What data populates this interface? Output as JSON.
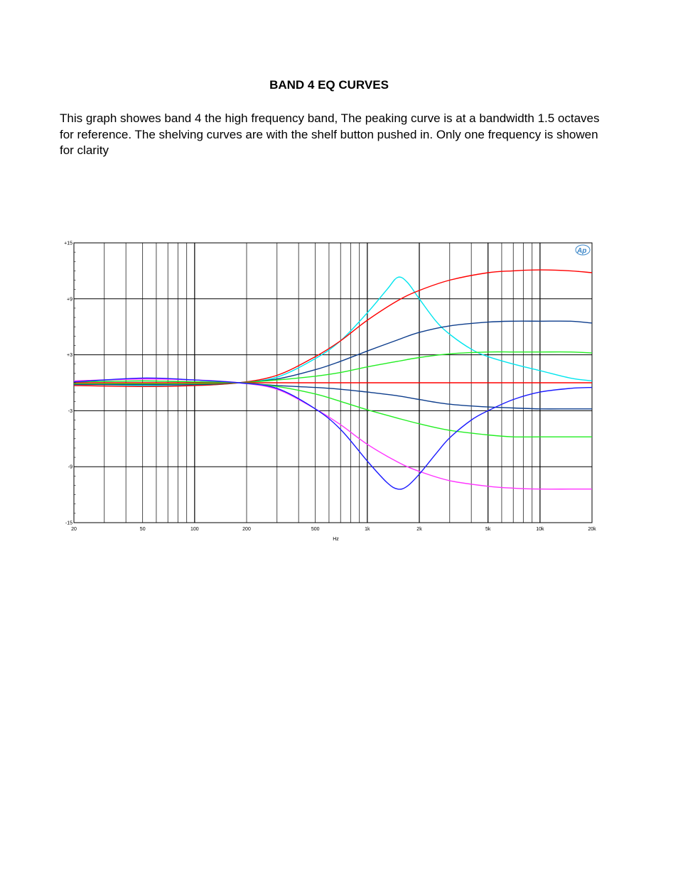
{
  "page": {
    "title": "BAND 4 EQ CURVES",
    "description": "This graph showes band 4 the high frequency band,  The peaking curve is at a bandwidth 1.5 octaves for reference.  The shelving curves are with the shelf button pushed in.  Only one frequency is showen for clarity"
  },
  "chart_data": {
    "type": "line",
    "title": "",
    "xlabel": "Hz",
    "ylabel": "",
    "xscale": "log",
    "xlim": [
      20,
      20000
    ],
    "ylim": [
      -15,
      15
    ],
    "grid": true,
    "logo": "Ap",
    "xticks": [
      {
        "v": 20,
        "label": "20"
      },
      {
        "v": 50,
        "label": "50"
      },
      {
        "v": 100,
        "label": "100"
      },
      {
        "v": 200,
        "label": "200"
      },
      {
        "v": 500,
        "label": "500"
      },
      {
        "v": 1000,
        "label": "1k"
      },
      {
        "v": 2000,
        "label": "2k"
      },
      {
        "v": 5000,
        "label": "5k"
      },
      {
        "v": 10000,
        "label": "10k"
      },
      {
        "v": 20000,
        "label": "20k"
      }
    ],
    "yticks": [
      {
        "v": 15,
        "label": "+15"
      },
      {
        "v": 9,
        "label": "+9"
      },
      {
        "v": 3,
        "label": "+3"
      },
      {
        "v": -3,
        "label": "-3"
      },
      {
        "v": -9,
        "label": "-9"
      },
      {
        "v": -15,
        "label": "-15"
      }
    ],
    "series": [
      {
        "color": "#00e5ee",
        "x": [
          20,
          50,
          100,
          180,
          300,
          500,
          700,
          1000,
          1300,
          1500,
          1700,
          2000,
          2500,
          3000,
          4000,
          5000,
          7000,
          10000,
          15000,
          20000
        ],
        "y": [
          -0.1,
          -0.3,
          -0.3,
          0,
          0.6,
          2.6,
          4.5,
          7.5,
          10,
          11.3,
          10.8,
          9,
          6.6,
          5.2,
          3.6,
          2.8,
          2,
          1.3,
          0.5,
          0.2
        ]
      },
      {
        "color": "#ff0000",
        "x": [
          20,
          50,
          100,
          180,
          300,
          500,
          700,
          1000,
          1500,
          2000,
          3000,
          5000,
          7000,
          10000,
          15000,
          20000
        ],
        "y": [
          -0.3,
          -0.4,
          -0.3,
          0,
          0.8,
          2.8,
          4.5,
          6.7,
          8.8,
          9.9,
          11,
          11.8,
          12,
          12.1,
          12,
          11.8
        ]
      },
      {
        "color": "#0d3d8c",
        "x": [
          20,
          50,
          100,
          180,
          300,
          500,
          700,
          1000,
          1500,
          2000,
          3000,
          5000,
          7000,
          10000,
          15000,
          20000
        ],
        "y": [
          -0.2,
          -0.2,
          -0.2,
          0,
          0.4,
          1.4,
          2.3,
          3.4,
          4.6,
          5.4,
          6.1,
          6.5,
          6.6,
          6.6,
          6.6,
          6.4
        ]
      },
      {
        "color": "#22ee22",
        "x": [
          20,
          50,
          100,
          180,
          300,
          500,
          700,
          1000,
          1500,
          2000,
          3000,
          5000,
          7000,
          10000,
          15000,
          20000
        ],
        "y": [
          -0.1,
          -0.1,
          -0.1,
          0,
          0.3,
          0.7,
          1.1,
          1.7,
          2.3,
          2.7,
          3.1,
          3.3,
          3.3,
          3.3,
          3.3,
          3.2
        ]
      },
      {
        "color": "#ff0000",
        "x": [
          20,
          50,
          100,
          200,
          500,
          1000,
          2000,
          5000,
          10000,
          20000
        ],
        "y": [
          0,
          0,
          0,
          0,
          0,
          0,
          0,
          0,
          0,
          0
        ]
      },
      {
        "color": "#0d3d8c",
        "x": [
          20,
          50,
          100,
          180,
          300,
          500,
          700,
          1000,
          1500,
          2000,
          3000,
          5000,
          7000,
          10000,
          15000,
          20000
        ],
        "y": [
          0.1,
          0.2,
          0.1,
          0,
          -0.3,
          -0.5,
          -0.7,
          -1,
          -1.4,
          -1.8,
          -2.3,
          -2.6,
          -2.7,
          -2.8,
          -2.8,
          -2.8
        ]
      },
      {
        "color": "#22ee22",
        "x": [
          20,
          50,
          100,
          180,
          300,
          500,
          700,
          1000,
          1500,
          2000,
          3000,
          5000,
          7000,
          10000,
          15000,
          20000
        ],
        "y": [
          0.1,
          0.2,
          0.1,
          0,
          -0.4,
          -1.2,
          -2,
          -2.9,
          -3.8,
          -4.4,
          -5.1,
          -5.6,
          -5.8,
          -5.8,
          -5.8,
          -5.8
        ]
      },
      {
        "color": "#ff33ff",
        "x": [
          20,
          50,
          100,
          180,
          300,
          500,
          700,
          1000,
          1500,
          2000,
          3000,
          5000,
          7000,
          10000,
          15000,
          20000
        ],
        "y": [
          0.2,
          0.4,
          0.3,
          0,
          -0.7,
          -2.8,
          -4.5,
          -6.6,
          -8.5,
          -9.5,
          -10.5,
          -11.1,
          -11.3,
          -11.4,
          -11.4,
          -11.4
        ]
      },
      {
        "color": "#1a1aff",
        "x": [
          20,
          50,
          100,
          180,
          300,
          500,
          700,
          1000,
          1300,
          1500,
          1700,
          2000,
          2500,
          3000,
          4000,
          5000,
          7000,
          10000,
          15000,
          20000
        ],
        "y": [
          0.1,
          0.5,
          0.3,
          0,
          -0.6,
          -2.8,
          -5,
          -8.4,
          -10.7,
          -11.4,
          -11.1,
          -9.8,
          -7.6,
          -5.9,
          -4,
          -3,
          -1.8,
          -1,
          -0.6,
          -0.5
        ]
      }
    ]
  }
}
